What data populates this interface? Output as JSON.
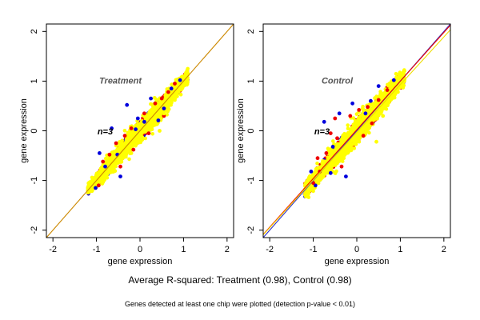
{
  "chart_data": [
    {
      "type": "scatter",
      "title": "",
      "annotation_title": "Treatment",
      "annotation_n": "n=3",
      "xlabel": "gene expression",
      "ylabel": "gene expression",
      "xlim": [
        -2.15,
        2.15
      ],
      "ylim": [
        -2.15,
        2.15
      ],
      "xticks": [
        -2,
        -1,
        0,
        1,
        2
      ],
      "yticks": [
        -2,
        -1,
        0,
        1,
        2
      ],
      "xtick_labels": [
        "-2",
        "-1",
        "0",
        "1",
        "2"
      ],
      "ytick_labels": [
        "-2",
        "-1",
        "0",
        "1",
        "2"
      ],
      "grid": false,
      "point_cloud": {
        "x_range": [
          -1.2,
          1.1
        ],
        "slope": 1.0,
        "core_spread": 0.1,
        "edge_spread": 0.16
      },
      "series": [
        {
          "color": "#0000dd",
          "values": [
            [
              -0.3,
              0.52
            ],
            [
              -0.93,
              -0.45
            ],
            [
              -0.65,
              0.05
            ],
            [
              -0.1,
              0.03
            ],
            [
              -0.52,
              -0.48
            ],
            [
              0.25,
              0.65
            ],
            [
              0.55,
              0.45
            ],
            [
              0.72,
              0.85
            ],
            [
              -0.45,
              -0.92
            ],
            [
              -1.02,
              -1.15
            ],
            [
              0.42,
              0.21
            ],
            [
              0.1,
              0.18
            ],
            [
              -0.8,
              -0.72
            ],
            [
              0.92,
              1.02
            ],
            [
              -0.05,
              0.25
            ]
          ]
        },
        {
          "color": "#ee0000",
          "values": [
            [
              -0.7,
              -0.48
            ],
            [
              -0.55,
              -0.25
            ],
            [
              -0.35,
              -0.1
            ],
            [
              -0.85,
              -0.62
            ],
            [
              -0.2,
              0.05
            ],
            [
              0.1,
              0.35
            ],
            [
              0.35,
              0.55
            ],
            [
              0.5,
              0.65
            ],
            [
              -0.45,
              -0.72
            ],
            [
              -0.15,
              -0.38
            ],
            [
              0.2,
              -0.05
            ],
            [
              0.55,
              0.3
            ],
            [
              -0.95,
              -1.1
            ],
            [
              0.8,
              0.95
            ],
            [
              0.65,
              0.78
            ]
          ]
        },
        {
          "color": "#ffff00",
          "values": [
            [
              0.45,
              0.0
            ],
            [
              0.55,
              0.35
            ],
            [
              -0.2,
              -0.45
            ],
            [
              0.8,
              0.62
            ],
            [
              -0.6,
              -0.58
            ]
          ]
        }
      ],
      "reference_lines": [
        {
          "slope": 1,
          "intercept": 0,
          "color": "#cc8800"
        }
      ]
    },
    {
      "type": "scatter",
      "title": "",
      "annotation_title": "Control",
      "annotation_n": "n=3",
      "xlabel": "gene expression",
      "ylabel": "gene expression",
      "xlim": [
        -2.15,
        2.15
      ],
      "ylim": [
        -2.15,
        2.15
      ],
      "xticks": [
        -2,
        -1,
        0,
        1,
        2
      ],
      "yticks": [
        -2,
        -1,
        0,
        1,
        2
      ],
      "xtick_labels": [
        "-2",
        "-1",
        "0",
        "1",
        "2"
      ],
      "ytick_labels": [
        "-2",
        "-1",
        "0",
        "1",
        "2"
      ],
      "grid": false,
      "point_cloud": {
        "x_range": [
          -1.2,
          1.1
        ],
        "slope": 1.0,
        "core_spread": 0.11,
        "edge_spread": 0.2
      },
      "series": [
        {
          "color": "#0000dd",
          "values": [
            [
              -0.75,
              0.18
            ],
            [
              -0.1,
              0.55
            ],
            [
              0.85,
              1.02
            ],
            [
              -0.25,
              -0.92
            ],
            [
              -0.95,
              -1.1
            ],
            [
              -0.55,
              -0.32
            ],
            [
              0.32,
              0.6
            ],
            [
              -0.4,
              0.35
            ],
            [
              0.5,
              0.9
            ],
            [
              -1.05,
              -0.82
            ],
            [
              0.2,
              0.35
            ],
            [
              -0.6,
              -0.85
            ]
          ]
        },
        {
          "color": "#ee0000",
          "values": [
            [
              -0.5,
              0.25
            ],
            [
              -0.7,
              -0.45
            ],
            [
              0.25,
              0.48
            ],
            [
              0.5,
              0.62
            ],
            [
              -0.35,
              -0.72
            ],
            [
              -0.85,
              -0.82
            ],
            [
              -0.6,
              -0.05
            ],
            [
              0.15,
              -0.1
            ],
            [
              -0.15,
              0.3
            ],
            [
              0.7,
              0.82
            ],
            [
              0.35,
              0.15
            ],
            [
              -1.0,
              -1.05
            ],
            [
              -0.45,
              -0.15
            ],
            [
              0.05,
              0.42
            ],
            [
              -0.9,
              -0.55
            ]
          ]
        },
        {
          "color": "#ffff00",
          "values": [
            [
              0.45,
              -0.22
            ],
            [
              -0.3,
              -0.55
            ],
            [
              0.6,
              0.3
            ],
            [
              -0.95,
              -0.82
            ]
          ]
        }
      ],
      "reference_lines": [
        {
          "slope": 1,
          "intercept": 0,
          "color": "#3333cc"
        },
        {
          "slope": 0.98,
          "intercept": 0.02,
          "color": "#ee0000"
        },
        {
          "slope": 0.96,
          "intercept": -0.03,
          "color": "#eedd00"
        }
      ]
    }
  ],
  "captions": {
    "main": "Average R-squared: Treatment (0.98), Control (0.98)",
    "footnote": "Genes detected at least one chip were plotted (detection p-value < 0.01)"
  }
}
